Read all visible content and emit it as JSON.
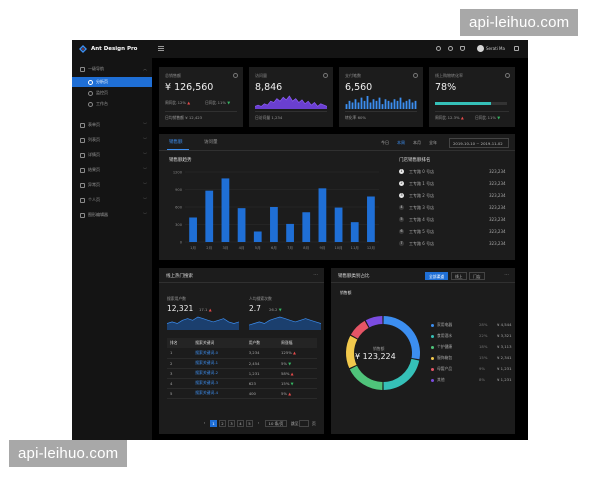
{
  "watermarks": {
    "top_right": "api-leihuo.com",
    "bottom_left": "api-leihuo.com"
  },
  "app": {
    "title": "Ant Design Pro",
    "user_name": "Serati Ma"
  },
  "sidebar": {
    "items": [
      {
        "label": "一级导航",
        "icon": "dashboard-icon",
        "expanded": true
      },
      {
        "label": "分析页",
        "sub": true,
        "active": true,
        "icon": "circle-icon"
      },
      {
        "label": "监控页",
        "sub": true,
        "icon": "circle-icon"
      },
      {
        "label": "工作台",
        "sub": true,
        "icon": "circle-icon"
      },
      {
        "label": "表单页",
        "icon": "form-icon"
      },
      {
        "label": "列表页",
        "icon": "table-icon"
      },
      {
        "label": "详情页",
        "icon": "profile-icon"
      },
      {
        "label": "结果页",
        "icon": "check-circle-icon"
      },
      {
        "label": "异常页",
        "icon": "warning-icon"
      },
      {
        "label": "个人页",
        "icon": "user-icon"
      },
      {
        "label": "图形编辑器",
        "icon": "highlight-icon"
      }
    ]
  },
  "kpis": [
    {
      "title": "总销售额",
      "value": "¥ 126,560",
      "trend1": "周同比  12%",
      "trend2": "日同比  11%",
      "footer": "日均销售额  ¥ 12,423"
    },
    {
      "title": "访问量",
      "value": "8,846",
      "footer": "日访问量  1,234"
    },
    {
      "title": "支付笔数",
      "value": "6,560",
      "footer": "转化率  60%"
    },
    {
      "title": "线上购物转化率",
      "value": "78%",
      "progress_percent": 78,
      "trend1": "周同比  12.3%",
      "trend2": "日同比  11%"
    }
  ],
  "sales": {
    "tabs": [
      "销售额",
      "访问量"
    ],
    "range_tabs": [
      "今日",
      "本周",
      "本月",
      "全年"
    ],
    "active_range": "本周",
    "date_range": "2019-10-10  ~  2019-11-02",
    "chart_title": "销售额趋势",
    "ranking_title": "门店销售额排名",
    "ranking": [
      {
        "rank": "1",
        "name": "工专路 0 号店",
        "value": "323,234"
      },
      {
        "rank": "2",
        "name": "工专路 1 号店",
        "value": "323,234"
      },
      {
        "rank": "3",
        "name": "工专路 2 号店",
        "value": "323,234"
      },
      {
        "rank": "4",
        "name": "工专路 3 号店",
        "value": "323,234"
      },
      {
        "rank": "5",
        "name": "工专路 4 号店",
        "value": "323,234"
      },
      {
        "rank": "6",
        "name": "工专路 5 号店",
        "value": "323,234"
      },
      {
        "rank": "7",
        "name": "工专路 6 号店",
        "value": "323,234"
      }
    ]
  },
  "search": {
    "title": "线上热门搜索",
    "users_title": "搜索用户数",
    "users_value": "12,321",
    "users_rate": "17.1",
    "avg_title": "人均搜索次数",
    "avg_value": "2.7",
    "avg_rate": "26.2",
    "columns": [
      "排名",
      "搜索关键词",
      "用户数",
      "周涨幅"
    ],
    "rows": [
      {
        "rank": "1",
        "keyword": "搜索关键词-0",
        "users": "3,234",
        "change": "125%"
      },
      {
        "rank": "2",
        "keyword": "搜索关键词-1",
        "users": "2,454",
        "change": "5%"
      },
      {
        "rank": "3",
        "keyword": "搜索关键词-2",
        "users": "1,231",
        "change": "58%"
      },
      {
        "rank": "4",
        "keyword": "搜索关键词-3",
        "users": "623",
        "change": "15%"
      },
      {
        "rank": "5",
        "keyword": "搜索关键词-4",
        "users": "400",
        "change": "5%"
      }
    ],
    "pagination": [
      "1",
      "2",
      "3",
      "4",
      "5"
    ],
    "page_size": "10 条/页",
    "goto_label": "跳至",
    "page_unit": "页"
  },
  "category": {
    "title": "销售额类别占比",
    "segments": [
      "全部渠道",
      "线上",
      "门店"
    ],
    "sub_title": "销售额",
    "center_label": "销售额",
    "center_value": "¥ 123,224",
    "items": [
      {
        "name": "家用电器",
        "pct": "28%",
        "value": "¥ 4,544",
        "color": "#3c8ef0"
      },
      {
        "name": "食用酒水",
        "pct": "22%",
        "value": "¥ 3,321",
        "color": "#35c0b8"
      },
      {
        "name": "个护健康",
        "pct": "18%",
        "value": "¥ 3,113",
        "color": "#4fc37a"
      },
      {
        "name": "服饰箱包",
        "pct": "15%",
        "value": "¥ 2,341",
        "color": "#f2c94c"
      },
      {
        "name": "母婴产品",
        "pct": "9%",
        "value": "¥ 1,231",
        "color": "#e55566"
      },
      {
        "name": "其他",
        "pct": "8%",
        "value": "¥ 1,231",
        "color": "#7b4ce0"
      }
    ]
  },
  "chart_data": [
    {
      "type": "bar",
      "title": "销售额趋势",
      "categories": [
        "1月",
        "2月",
        "3月",
        "4月",
        "5月",
        "6月",
        "7月",
        "8月",
        "9月",
        "10月",
        "11月",
        "12月"
      ],
      "values": [
        420,
        880,
        1090,
        580,
        180,
        600,
        310,
        510,
        920,
        590,
        340,
        780
      ],
      "ylim": [
        0,
        1200
      ],
      "yticks": [
        "1200",
        "900",
        "600",
        "300",
        "0"
      ],
      "grid": true
    },
    {
      "type": "pie",
      "title": "销售额类别占比",
      "categories": [
        "家用电器",
        "食用酒水",
        "个护健康",
        "服饰箱包",
        "母婴产品",
        "其他"
      ],
      "values": [
        28,
        22,
        18,
        15,
        9,
        8
      ],
      "colors": [
        "#3c8ef0",
        "#35c0b8",
        "#4fc37a",
        "#f2c94c",
        "#e55566",
        "#7b4ce0"
      ]
    },
    {
      "type": "area",
      "title": "访问量",
      "values": [
        2,
        3,
        2,
        4,
        3,
        6,
        5,
        8,
        6,
        9,
        7,
        10,
        6,
        8,
        5,
        7,
        4,
        6,
        3,
        5,
        2,
        4,
        3,
        2
      ]
    },
    {
      "type": "bar",
      "title": "支付笔数",
      "values": [
        3,
        5,
        4,
        6,
        4,
        7,
        5,
        8,
        4,
        6,
        5,
        7,
        3,
        6,
        5,
        4,
        6,
        5,
        7,
        4,
        5,
        6,
        4,
        5
      ]
    },
    {
      "type": "area",
      "title": "搜索用户数",
      "values": [
        4,
        5,
        4,
        6,
        7,
        6,
        8,
        7,
        6,
        5,
        6,
        7,
        5,
        4,
        5
      ]
    },
    {
      "type": "area",
      "title": "人均搜索次数",
      "values": [
        3,
        4,
        5,
        4,
        6,
        7,
        8,
        7,
        6,
        5,
        6,
        7,
        6,
        5,
        4
      ]
    }
  ]
}
